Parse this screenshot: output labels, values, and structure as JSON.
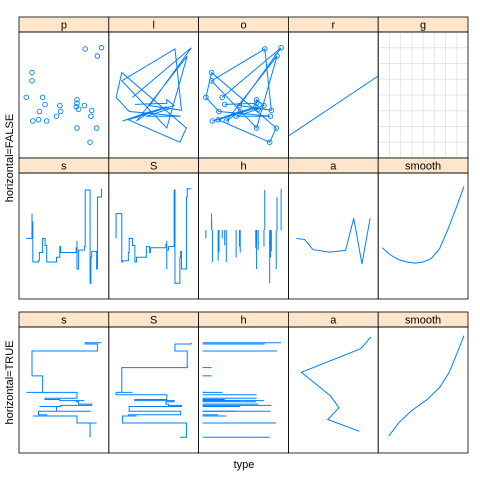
{
  "chart_data": {
    "type": "lattice-panels",
    "xlabel": "type",
    "colors": {
      "strip": "#ffe5cc",
      "line": "#0080ff",
      "grid": "#e6e6e6",
      "border": "#000000"
    },
    "groups": [
      {
        "label": "horizontal=FALSE",
        "rows": [
          [
            "p",
            "l",
            "o",
            "r",
            "g"
          ],
          [
            "s",
            "S",
            "h",
            "a",
            "smooth"
          ]
        ]
      },
      {
        "label": "horizontal=TRUE",
        "rows": [
          [
            "s",
            "S",
            "h",
            "a",
            "smooth"
          ]
        ]
      }
    ],
    "x": [
      0.27,
      0.66,
      0.66,
      0.75,
      0.19,
      0.82,
      0.9,
      0.11,
      0.04,
      0.2,
      0.83,
      0.41,
      0.68,
      0.65,
      0.12,
      0.46,
      0.29,
      0.91,
      0.66,
      0.11,
      0.76,
      0.84,
      0.45,
      0.96,
      0.24
    ],
    "y": [
      0.42,
      0.43,
      0.46,
      0.41,
      0.29,
      0.1,
      0.22,
      0.69,
      0.48,
      0.36,
      0.32,
      0.32,
      0.38,
      0.4,
      0.28,
      0.36,
      0.28,
      0.83,
      0.22,
      0.62,
      0.89,
      0.37,
      0.41,
      0.9,
      0.48
    ],
    "smooth_curve": [
      [
        0.0,
        0.4
      ],
      [
        0.1,
        0.34
      ],
      [
        0.2,
        0.3
      ],
      [
        0.3,
        0.28
      ],
      [
        0.4,
        0.27
      ],
      [
        0.5,
        0.28
      ],
      [
        0.6,
        0.31
      ],
      [
        0.7,
        0.39
      ],
      [
        0.8,
        0.55
      ],
      [
        0.9,
        0.73
      ],
      [
        1.0,
        0.92
      ]
    ],
    "horizontal_smooth_curve": [
      [
        0.08,
        0.11
      ],
      [
        0.2,
        0.22
      ],
      [
        0.35,
        0.32
      ],
      [
        0.55,
        0.42
      ],
      [
        0.7,
        0.52
      ],
      [
        0.82,
        0.65
      ],
      [
        0.92,
        0.82
      ],
      [
        1.0,
        0.96
      ]
    ]
  }
}
